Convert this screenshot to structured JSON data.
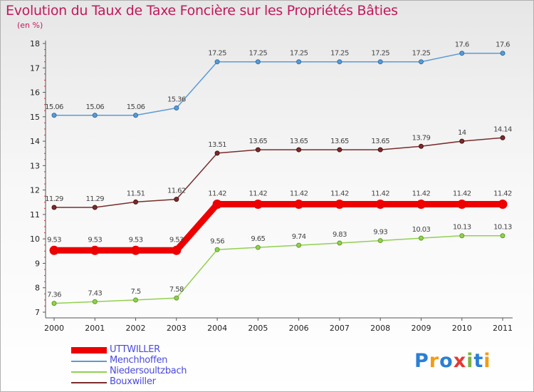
{
  "header": {
    "title": "Evolution du Taux de Taxe Foncière sur les Propriétés Bâties",
    "unit": "(en %)"
  },
  "logo": {
    "text": "Proxiti",
    "letters": [
      "P",
      "r",
      "o",
      "x",
      "i",
      "t",
      "i"
    ],
    "colors": [
      "#2a7fd4",
      "#f39c12",
      "#2a7fd4",
      "#e53935",
      "#7cb342",
      "#2a7fd4",
      "#f39c12"
    ]
  },
  "chart_data": {
    "type": "line",
    "title": "Evolution du Taux de Taxe Foncière sur les Propriétés Bâties",
    "ylabel": "(en %)",
    "xlabel": "",
    "ylim": [
      7,
      18
    ],
    "y_ticks": [
      7,
      8,
      9,
      10,
      11,
      12,
      13,
      14,
      15,
      16,
      17,
      18
    ],
    "categories": [
      "2000",
      "2001",
      "2002",
      "2003",
      "2004",
      "2005",
      "2006",
      "2007",
      "2008",
      "2009",
      "2010",
      "2011"
    ],
    "grid": false,
    "series": [
      {
        "name": "UTTWILLER",
        "color": "#ee0000",
        "values": [
          9.53,
          9.53,
          9.53,
          9.53,
          11.42,
          11.42,
          11.42,
          11.42,
          11.42,
          11.42,
          11.42,
          11.42
        ],
        "labels": [
          "9.53",
          "9.53",
          "9.53",
          "9.53",
          "11.42",
          "11.42",
          "11.42",
          "11.42",
          "11.42",
          "11.42",
          "11.42",
          "11.42"
        ]
      },
      {
        "name": "Menchhoffen",
        "color": "#5b9bd5",
        "values": [
          15.06,
          15.06,
          15.06,
          15.36,
          17.25,
          17.25,
          17.25,
          17.25,
          17.25,
          17.25,
          17.6,
          17.6
        ],
        "labels": [
          "15.06",
          "15.06",
          "15.06",
          "15.36",
          "17.25",
          "17.25",
          "17.25",
          "17.25",
          "17.25",
          "17.25",
          "17.6",
          "17.6"
        ]
      },
      {
        "name": "Niedersoultzbach",
        "color": "#92d050",
        "values": [
          7.36,
          7.43,
          7.5,
          7.58,
          9.56,
          9.65,
          9.74,
          9.83,
          9.93,
          10.03,
          10.13,
          10.13
        ],
        "labels": [
          "7.36",
          "7.43",
          "7.5",
          "7.58",
          "9.56",
          "9.65",
          "9.74",
          "9.83",
          "9.93",
          "10.03",
          "10.13",
          "10.13"
        ]
      },
      {
        "name": "Bouxwiller",
        "color": "#7b2c2c",
        "values": [
          11.29,
          11.29,
          11.51,
          11.62,
          13.51,
          13.65,
          13.65,
          13.65,
          13.65,
          13.79,
          14,
          14.14
        ],
        "labels": [
          "11.29",
          "11.29",
          "11.51",
          "11.62",
          "13.51",
          "13.65",
          "13.65",
          "13.65",
          "13.65",
          "13.79",
          "14",
          "14.14"
        ]
      }
    ]
  }
}
